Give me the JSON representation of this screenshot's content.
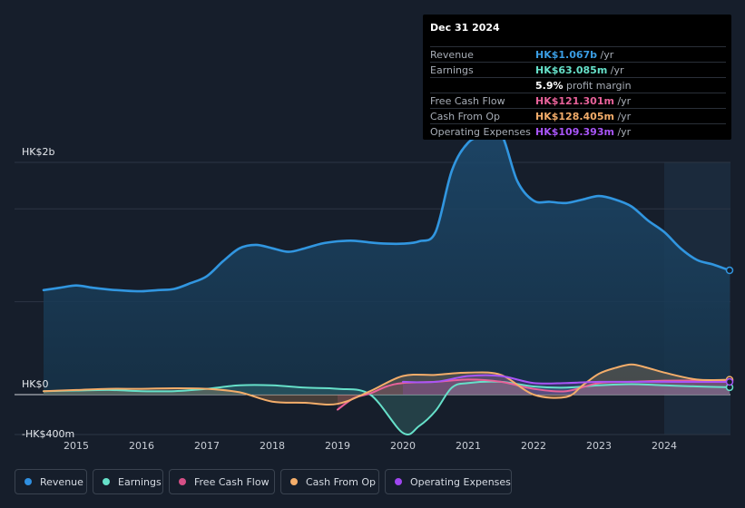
{
  "tooltip": {
    "date": "Dec 31 2024",
    "rows": [
      {
        "label": "Revenue",
        "value": "HK$1.067b",
        "unit": "/yr",
        "color": "#3a9de3"
      },
      {
        "label": "Earnings",
        "value": "HK$63.085m",
        "unit": "/yr",
        "color": "#66e0c9"
      },
      {
        "label": "",
        "value": "5.9%",
        "unit": "profit margin",
        "color": "#ffffff"
      },
      {
        "label": "Free Cash Flow",
        "value": "HK$121.301m",
        "unit": "/yr",
        "color": "#e8629a"
      },
      {
        "label": "Cash From Op",
        "value": "HK$128.405m",
        "unit": "/yr",
        "color": "#f3ad6a"
      },
      {
        "label": "Operating Expenses",
        "value": "HK$109.393m",
        "unit": "/yr",
        "color": "#a855f7"
      }
    ]
  },
  "legend": [
    {
      "label": "Revenue",
      "color": "#2f8fe0"
    },
    {
      "label": "Earnings",
      "color": "#66e0c9"
    },
    {
      "label": "Free Cash Flow",
      "color": "#d54f86"
    },
    {
      "label": "Cash From Op",
      "color": "#f3ad6a"
    },
    {
      "label": "Operating Expenses",
      "color": "#9f46f0"
    }
  ],
  "chart_data": {
    "type": "line",
    "title": "",
    "ylabel": "HK$",
    "y_tick_labels": [
      "HK$2b",
      "HK$0",
      "-HK$400m"
    ],
    "ylim": [
      -400,
      2400
    ],
    "x_tick_labels": [
      "2015",
      "2016",
      "2017",
      "2018",
      "2019",
      "2020",
      "2021",
      "2022",
      "2023",
      "2024"
    ],
    "xlim": [
      2014.3,
      2025.0
    ],
    "forecast_shade_from": 2024.0,
    "series": [
      {
        "name": "Revenue",
        "color": "#3196e0",
        "x": [
          2014.5,
          2014.75,
          2015.0,
          2015.25,
          2015.5,
          2015.75,
          2016.0,
          2016.25,
          2016.5,
          2016.75,
          2017.0,
          2017.25,
          2017.5,
          2017.75,
          2018.0,
          2018.25,
          2018.5,
          2018.75,
          2019.0,
          2019.25,
          2019.5,
          2019.75,
          2020.0,
          2020.25,
          2020.5,
          2020.75,
          2021.0,
          2021.25,
          2021.5,
          2021.75,
          2022.0,
          2022.25,
          2022.5,
          2022.75,
          2023.0,
          2023.25,
          2023.5,
          2023.75,
          2024.0,
          2024.25,
          2024.5,
          2024.75,
          2025.0
        ],
        "values": [
          900,
          920,
          940,
          920,
          905,
          895,
          890,
          900,
          910,
          960,
          1020,
          1150,
          1260,
          1290,
          1260,
          1230,
          1260,
          1300,
          1320,
          1325,
          1310,
          1300,
          1300,
          1320,
          1400,
          1930,
          2170,
          2230,
          2250,
          1840,
          1670,
          1660,
          1650,
          1680,
          1710,
          1680,
          1620,
          1500,
          1400,
          1260,
          1160,
          1120,
          1070
        ]
      },
      {
        "name": "Earnings",
        "color": "#66e0c9",
        "x": [
          2014.5,
          2015.0,
          2015.5,
          2016.0,
          2016.5,
          2017.0,
          2017.5,
          2018.0,
          2018.5,
          2019.0,
          2019.5,
          2020.0,
          2020.25,
          2020.5,
          2020.75,
          2021.0,
          2021.5,
          2022.0,
          2022.5,
          2023.0,
          2023.5,
          2024.0,
          2024.5,
          2025.0
        ],
        "values": [
          30,
          35,
          40,
          30,
          30,
          50,
          80,
          80,
          60,
          50,
          0,
          -330,
          -270,
          -140,
          60,
          100,
          110,
          70,
          60,
          80,
          90,
          80,
          70,
          63
        ]
      },
      {
        "name": "Free Cash Flow",
        "color": "#e8629a",
        "x": [
          2019.0,
          2019.25,
          2019.5,
          2019.75,
          2020.0,
          2020.5,
          2021.0,
          2021.5,
          2022.0,
          2022.5,
          2023.0,
          2023.5,
          2024.0,
          2024.5,
          2025.0
        ],
        "values": [
          -130,
          -30,
          10,
          70,
          100,
          110,
          130,
          110,
          50,
          30,
          100,
          110,
          120,
          121,
          121
        ]
      },
      {
        "name": "Cash From Op",
        "color": "#f3ad6a",
        "x": [
          2014.5,
          2015.0,
          2015.5,
          2016.0,
          2016.5,
          2017.0,
          2017.5,
          2018.0,
          2018.5,
          2019.0,
          2019.5,
          2020.0,
          2020.5,
          2021.0,
          2021.5,
          2022.0,
          2022.5,
          2022.75,
          2023.0,
          2023.25,
          2023.5,
          2023.75,
          2024.0,
          2024.5,
          2025.0
        ],
        "values": [
          30,
          40,
          50,
          50,
          55,
          50,
          20,
          -60,
          -70,
          -80,
          30,
          160,
          170,
          190,
          170,
          0,
          -20,
          80,
          180,
          230,
          260,
          230,
          190,
          130,
          128
        ]
      },
      {
        "name": "Operating Expenses",
        "color": "#a855f7",
        "x": [
          2020.0,
          2020.5,
          2021.0,
          2021.5,
          2022.0,
          2022.5,
          2023.0,
          2023.5,
          2024.0,
          2024.5,
          2025.0
        ],
        "values": [
          110,
          110,
          160,
          160,
          100,
          100,
          110,
          110,
          110,
          109,
          109
        ]
      }
    ]
  }
}
